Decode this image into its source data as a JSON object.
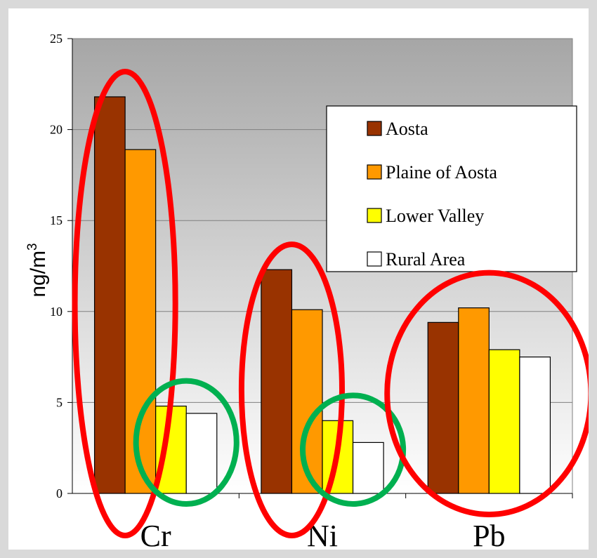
{
  "chart_data": {
    "type": "bar",
    "categories": [
      "Cr",
      "Ni",
      "Pb"
    ],
    "series": [
      {
        "name": "Aosta",
        "values": [
          21.8,
          12.3,
          9.4
        ],
        "color": "#993300"
      },
      {
        "name": "Plaine of Aosta",
        "values": [
          18.9,
          10.1,
          10.2
        ],
        "color": "#ff9900"
      },
      {
        "name": "Lower Valley",
        "values": [
          4.8,
          4.0,
          7.9
        ],
        "color": "#ffff00"
      },
      {
        "name": "Rural Area",
        "values": [
          4.4,
          2.8,
          7.5
        ],
        "color": "#ffffff"
      }
    ],
    "ylabel_base": "ng/m",
    "ylabel_sup": "3",
    "ylim": [
      0,
      25
    ],
    "yticks": [
      0,
      5,
      10,
      15,
      20,
      25
    ],
    "grid": true,
    "legend_position": "top-right",
    "plot_background": "gradient-grey",
    "annotations": [
      {
        "shape": "ellipse",
        "color": "#ff0000",
        "group": "Cr",
        "series": [
          "Aosta",
          "Plaine of Aosta"
        ]
      },
      {
        "shape": "ellipse",
        "color": "#00b050",
        "group": "Cr",
        "series": [
          "Lower Valley",
          "Rural Area"
        ]
      },
      {
        "shape": "ellipse",
        "color": "#ff0000",
        "group": "Ni",
        "series": [
          "Aosta",
          "Plaine of Aosta"
        ]
      },
      {
        "shape": "ellipse",
        "color": "#00b050",
        "group": "Ni",
        "series": [
          "Lower Valley",
          "Rural Area"
        ]
      },
      {
        "shape": "ellipse",
        "color": "#ff0000",
        "group": "Pb",
        "series": [
          "Aosta",
          "Plaine of Aosta",
          "Lower Valley",
          "Rural Area"
        ]
      }
    ]
  }
}
